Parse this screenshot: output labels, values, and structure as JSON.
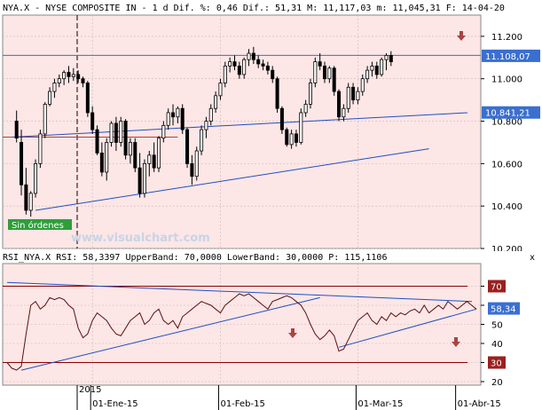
{
  "window": {
    "close_symbol": "x"
  },
  "colors": {
    "price_bg": "#fde6e6",
    "rsi_bg": "#fde6e6",
    "candle_up": "#ffffff",
    "candle_down": "#000000",
    "upper_line": "#3a6fd0",
    "trend_line": "#1f4fbf",
    "lower_red": "#c0392b",
    "rsi_line": "#5a1010",
    "rsi_band": "#8b0000",
    "price_badge": "#3a6fd0",
    "band_badge": "#9b2020",
    "sin_badge": "#2e9e3a",
    "arrow": "#a94442"
  },
  "chart_data": [
    {
      "type": "candlestick",
      "title": "NYA.X - NYSE COMPOSITE IN - 1 d Dif. %: 0,46 Dif.: 51,31 M: 11,117,03 m: 11,045,31 F: 14-04-20",
      "ylim": [
        10200,
        11300
      ],
      "y_ticks": [
        "11.200",
        "11.000",
        "10.800",
        "10.600",
        "10.400",
        "10.200"
      ],
      "y_tick_values": [
        11200,
        11000,
        10800,
        10600,
        10400,
        10200
      ],
      "price_labels": [
        {
          "label": "11.108,07",
          "value": 11108
        },
        {
          "label": "10.841,21",
          "value": 10841
        }
      ],
      "candles": [
        {
          "o": 10800,
          "h": 10850,
          "l": 10700,
          "c": 10720
        },
        {
          "o": 10700,
          "h": 10760,
          "l": 10450,
          "c": 10500
        },
        {
          "o": 10500,
          "h": 10580,
          "l": 10360,
          "c": 10380
        },
        {
          "o": 10380,
          "h": 10470,
          "l": 10350,
          "c": 10460
        },
        {
          "o": 10460,
          "h": 10620,
          "l": 10440,
          "c": 10600
        },
        {
          "o": 10600,
          "h": 10760,
          "l": 10580,
          "c": 10740
        },
        {
          "o": 10740,
          "h": 10890,
          "l": 10720,
          "c": 10880
        },
        {
          "o": 10880,
          "h": 10960,
          "l": 10870,
          "c": 10940
        },
        {
          "o": 10940,
          "h": 11000,
          "l": 10910,
          "c": 10980
        },
        {
          "o": 10980,
          "h": 11020,
          "l": 10960,
          "c": 11000
        },
        {
          "o": 11000,
          "h": 11040,
          "l": 10970,
          "c": 11030
        },
        {
          "o": 11030,
          "h": 11060,
          "l": 10980,
          "c": 11010
        },
        {
          "o": 11010,
          "h": 11050,
          "l": 10990,
          "c": 11020
        },
        {
          "o": 11020,
          "h": 11040,
          "l": 10980,
          "c": 11000
        },
        {
          "o": 11000,
          "h": 11010,
          "l": 10960,
          "c": 10980
        },
        {
          "o": 10980,
          "h": 10990,
          "l": 10820,
          "c": 10840
        },
        {
          "o": 10840,
          "h": 10870,
          "l": 10740,
          "c": 10760
        },
        {
          "o": 10760,
          "h": 10780,
          "l": 10640,
          "c": 10650
        },
        {
          "o": 10650,
          "h": 10700,
          "l": 10540,
          "c": 10560
        },
        {
          "o": 10560,
          "h": 10720,
          "l": 10520,
          "c": 10700
        },
        {
          "o": 10700,
          "h": 10800,
          "l": 10680,
          "c": 10790
        },
        {
          "o": 10790,
          "h": 10820,
          "l": 10660,
          "c": 10700
        },
        {
          "o": 10700,
          "h": 10820,
          "l": 10680,
          "c": 10800
        },
        {
          "o": 10800,
          "h": 10810,
          "l": 10620,
          "c": 10640
        },
        {
          "o": 10640,
          "h": 10720,
          "l": 10600,
          "c": 10700
        },
        {
          "o": 10700,
          "h": 10720,
          "l": 10560,
          "c": 10580
        },
        {
          "o": 10580,
          "h": 10650,
          "l": 10440,
          "c": 10460
        },
        {
          "o": 10460,
          "h": 10620,
          "l": 10440,
          "c": 10600
        },
        {
          "o": 10600,
          "h": 10660,
          "l": 10540,
          "c": 10640
        },
        {
          "o": 10640,
          "h": 10700,
          "l": 10560,
          "c": 10580
        },
        {
          "o": 10580,
          "h": 10730,
          "l": 10560,
          "c": 10720
        },
        {
          "o": 10720,
          "h": 10800,
          "l": 10700,
          "c": 10780
        },
        {
          "o": 10780,
          "h": 10860,
          "l": 10760,
          "c": 10840
        },
        {
          "o": 10840,
          "h": 10880,
          "l": 10780,
          "c": 10820
        },
        {
          "o": 10820,
          "h": 10870,
          "l": 10790,
          "c": 10860
        },
        {
          "o": 10860,
          "h": 10880,
          "l": 10740,
          "c": 10760
        },
        {
          "o": 10760,
          "h": 10770,
          "l": 10580,
          "c": 10600
        },
        {
          "o": 10600,
          "h": 10640,
          "l": 10500,
          "c": 10540
        },
        {
          "o": 10540,
          "h": 10680,
          "l": 10520,
          "c": 10660
        },
        {
          "o": 10660,
          "h": 10780,
          "l": 10640,
          "c": 10760
        },
        {
          "o": 10760,
          "h": 10820,
          "l": 10720,
          "c": 10800
        },
        {
          "o": 10800,
          "h": 10880,
          "l": 10780,
          "c": 10860
        },
        {
          "o": 10860,
          "h": 10940,
          "l": 10840,
          "c": 10920
        },
        {
          "o": 10920,
          "h": 11000,
          "l": 10900,
          "c": 10980
        },
        {
          "o": 10980,
          "h": 11080,
          "l": 10960,
          "c": 11060
        },
        {
          "o": 11060,
          "h": 11100,
          "l": 11030,
          "c": 11080
        },
        {
          "o": 11080,
          "h": 11110,
          "l": 11040,
          "c": 11060
        },
        {
          "o": 11060,
          "h": 11080,
          "l": 11000,
          "c": 11020
        },
        {
          "o": 11020,
          "h": 11100,
          "l": 11000,
          "c": 11090
        },
        {
          "o": 11090,
          "h": 11140,
          "l": 11060,
          "c": 11120
        },
        {
          "o": 11120,
          "h": 11150,
          "l": 11070,
          "c": 11090
        },
        {
          "o": 11090,
          "h": 11110,
          "l": 11050,
          "c": 11070
        },
        {
          "o": 11070,
          "h": 11090,
          "l": 11040,
          "c": 11060
        },
        {
          "o": 11060,
          "h": 11080,
          "l": 11020,
          "c": 11040
        },
        {
          "o": 11040,
          "h": 11060,
          "l": 10980,
          "c": 11000
        },
        {
          "o": 11000,
          "h": 11010,
          "l": 10840,
          "c": 10860
        },
        {
          "o": 10860,
          "h": 10870,
          "l": 10740,
          "c": 10760
        },
        {
          "o": 10760,
          "h": 10770,
          "l": 10680,
          "c": 10690
        },
        {
          "o": 10690,
          "h": 10760,
          "l": 10670,
          "c": 10740
        },
        {
          "o": 10740,
          "h": 10760,
          "l": 10680,
          "c": 10700
        },
        {
          "o": 10700,
          "h": 10860,
          "l": 10690,
          "c": 10840
        },
        {
          "o": 10840,
          "h": 10900,
          "l": 10820,
          "c": 10880
        },
        {
          "o": 10880,
          "h": 11000,
          "l": 10860,
          "c": 10980
        },
        {
          "o": 10980,
          "h": 11100,
          "l": 10960,
          "c": 11080
        },
        {
          "o": 11080,
          "h": 11120,
          "l": 11040,
          "c": 11060
        },
        {
          "o": 11060,
          "h": 11080,
          "l": 10980,
          "c": 11000
        },
        {
          "o": 11000,
          "h": 11060,
          "l": 10980,
          "c": 11050
        },
        {
          "o": 11050,
          "h": 11060,
          "l": 10920,
          "c": 10940
        },
        {
          "o": 10940,
          "h": 10950,
          "l": 10800,
          "c": 10820
        },
        {
          "o": 10820,
          "h": 10880,
          "l": 10800,
          "c": 10860
        },
        {
          "o": 10860,
          "h": 10980,
          "l": 10840,
          "c": 10960
        },
        {
          "o": 10960,
          "h": 10980,
          "l": 10880,
          "c": 10900
        },
        {
          "o": 10900,
          "h": 10960,
          "l": 10880,
          "c": 10940
        },
        {
          "o": 10940,
          "h": 11020,
          "l": 10920,
          "c": 11000
        },
        {
          "o": 11000,
          "h": 11060,
          "l": 10980,
          "c": 11040
        },
        {
          "o": 11040,
          "h": 11080,
          "l": 11010,
          "c": 11060
        },
        {
          "o": 11060,
          "h": 11080,
          "l": 11000,
          "c": 11020
        },
        {
          "o": 11020,
          "h": 11100,
          "l": 11010,
          "c": 11090
        },
        {
          "o": 11090,
          "h": 11120,
          "l": 11040,
          "c": 11110
        },
        {
          "o": 11110,
          "h": 11130,
          "l": 11060,
          "c": 11080
        }
      ],
      "candle_start_index": 2,
      "lines": {
        "upper_horizontal": {
          "y0": 11110,
          "y1": 11110
        },
        "middle_trend": {
          "i0": 0,
          "y0": 10725,
          "i1": 82,
          "y1": 10840
        },
        "support_trend": {
          "i0": 4,
          "y0": 10380,
          "i1": 72,
          "y1": 10670
        }
      },
      "annotations": {
        "status_badge": "Sin órdenes",
        "watermark": "www.visualchart.com"
      }
    },
    {
      "type": "line",
      "title": "RSI_NYA.X RSI: 58,3397 UpperBand: 70,0000 LowerBand: 30,0000 P: 115,1106",
      "ylim": [
        20,
        80
      ],
      "y_ticks": [
        "70",
        "60",
        "50",
        "40",
        "30",
        "20"
      ],
      "y_tick_values": [
        70,
        60,
        50,
        40,
        30,
        20
      ],
      "bands": [
        {
          "label": "70",
          "value": 70
        },
        {
          "label": "30",
          "value": 30
        }
      ],
      "current_label": "58,34",
      "current_value": 58.34,
      "values": [
        30,
        27,
        26,
        28,
        45,
        60,
        62,
        58,
        60,
        64,
        63,
        64,
        63,
        60,
        58,
        48,
        43,
        45,
        52,
        56,
        54,
        52,
        48,
        45,
        44,
        48,
        52,
        54,
        56,
        50,
        52,
        56,
        58,
        52,
        50,
        52,
        48,
        54,
        56,
        58,
        60,
        62,
        61,
        60,
        58,
        56,
        60,
        62,
        64,
        66,
        65,
        66,
        64,
        62,
        60,
        58,
        62,
        63,
        64,
        65,
        64,
        62,
        60,
        56,
        50,
        45,
        42,
        44,
        47,
        44,
        36,
        37,
        42,
        47,
        52,
        54,
        56,
        52,
        50,
        54,
        52,
        56,
        54,
        56,
        55,
        57,
        58,
        56,
        60,
        56,
        58,
        60,
        58,
        62,
        60,
        58,
        60,
        62,
        60,
        58
      ],
      "lines": {
        "top_down": {
          "i0": 0,
          "y0": 72,
          "i1": 99,
          "y1": 62
        },
        "up_trend_1": {
          "i0": 3,
          "y0": 26,
          "i1": 66,
          "y1": 64
        },
        "up_trend_2": {
          "i0": 70,
          "y0": 38,
          "i1": 99,
          "y1": 58
        }
      }
    }
  ],
  "x_axis": {
    "year_label": "2015",
    "date_labels": [
      "01-Ene-15",
      "01-Feb-15",
      "01-Mar-15",
      "01-Abr-15"
    ]
  }
}
